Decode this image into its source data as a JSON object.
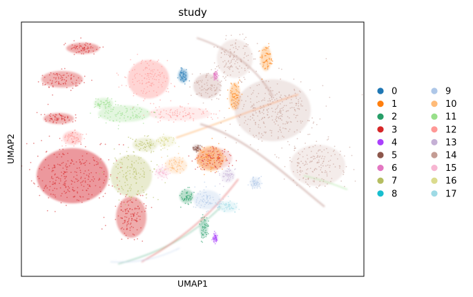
{
  "chart_data": {
    "type": "scatter",
    "title": "study",
    "xlabel": "UMAP1",
    "ylabel": "UMAP2",
    "x_ticks": [],
    "y_ticks": [],
    "grid": false,
    "legend_placement": "right, outside plot, two columns",
    "categories": [
      "0",
      "1",
      "2",
      "3",
      "4",
      "5",
      "6",
      "7",
      "8",
      "9",
      "10",
      "11",
      "12",
      "13",
      "14",
      "15",
      "16",
      "17"
    ],
    "series": [
      {
        "name": "0",
        "color": "#1f77b4"
      },
      {
        "name": "1",
        "color": "#ff7f0e"
      },
      {
        "name": "2",
        "color": "#279e68"
      },
      {
        "name": "3",
        "color": "#d62728"
      },
      {
        "name": "4",
        "color": "#aa40fc"
      },
      {
        "name": "5",
        "color": "#8c564b"
      },
      {
        "name": "6",
        "color": "#e377c2"
      },
      {
        "name": "7",
        "color": "#b5bd61"
      },
      {
        "name": "8",
        "color": "#17becf"
      },
      {
        "name": "9",
        "color": "#aec7e8"
      },
      {
        "name": "10",
        "color": "#ffbb78"
      },
      {
        "name": "11",
        "color": "#98df8a"
      },
      {
        "name": "12",
        "color": "#ff9896"
      },
      {
        "name": "13",
        "color": "#c5b0d5"
      },
      {
        "name": "14",
        "color": "#c49c94"
      },
      {
        "name": "15",
        "color": "#f7b6d2"
      },
      {
        "name": "16",
        "color": "#dbdb8d"
      },
      {
        "name": "17",
        "color": "#9edae5"
      }
    ]
  }
}
